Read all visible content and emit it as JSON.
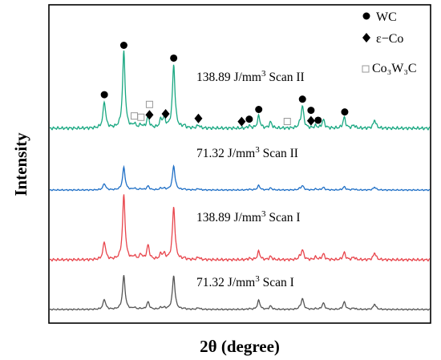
{
  "chart_data": {
    "type": "line",
    "xlabel": "2θ (degree)",
    "ylabel": "Intensity",
    "x_ticks_shown": false,
    "y_ticks_shown": false,
    "x_range": [
      20,
      100
    ],
    "grid": false,
    "legend_position": "top-right",
    "legend": [
      {
        "marker": "filled-circle",
        "label": "WC"
      },
      {
        "marker": "filled-diamond",
        "label": "ε−Co"
      },
      {
        "marker": "open-square",
        "label": "Co₃W₃C"
      }
    ],
    "peaks_2theta": [
      31.5,
      35.6,
      37.8,
      39.2,
      40.7,
      43.4,
      44.1,
      46.1,
      48.3,
      51.3,
      62.0,
      64.0,
      66.5,
      72.6,
      73.2,
      76.0,
      77.6,
      82.0,
      84.0,
      88.4
    ],
    "series": [
      {
        "name": "71.32 J/mm³ Scan I",
        "color": "#555555",
        "label_text": [
          "71.32 J/mm",
          "3",
          " Scan I"
        ],
        "intensities": [
          0.3,
          1.0,
          0.05,
          0.02,
          0.22,
          0.05,
          0.04,
          1.0,
          0.02,
          0.05,
          0.02,
          0.27,
          0.1,
          0.03,
          0.32,
          0.02,
          0.19,
          0.22,
          0.04,
          0.16
        ]
      },
      {
        "name": "138.89 J/mm³ Scan I",
        "color": "#e8454c",
        "label_text": [
          "138.89 J/mm",
          "3",
          " Scan I"
        ],
        "intensities": [
          0.28,
          1.0,
          0.05,
          0.08,
          0.22,
          0.08,
          0.08,
          0.82,
          0.02,
          0.04,
          0.02,
          0.13,
          0.05,
          0.03,
          0.15,
          0.04,
          0.09,
          0.11,
          0.04,
          0.11
        ]
      },
      {
        "name": "71.32 J/mm³ Scan II",
        "color": "#1f6fc6",
        "label_text": [
          "71.32 J/mm",
          "3",
          " Scan II"
        ],
        "intensities": [
          0.2,
          0.7,
          0.05,
          0.03,
          0.12,
          0.05,
          0.04,
          0.75,
          0.02,
          0.04,
          0.02,
          0.14,
          0.06,
          0.03,
          0.13,
          0.03,
          0.08,
          0.1,
          0.03,
          0.09
        ]
      },
      {
        "name": "138.89 J/mm³ Scan II",
        "color": "#1aa882",
        "label_text": [
          "138.89 J/mm",
          "3",
          " Scan II"
        ],
        "intensities": [
          0.35,
          1.0,
          0.05,
          0.04,
          0.15,
          0.1,
          0.12,
          0.83,
          0.03,
          0.04,
          0.03,
          0.16,
          0.08,
          0.03,
          0.29,
          0.03,
          0.11,
          0.14,
          0.04,
          0.11
        ]
      }
    ],
    "peak_markers": [
      {
        "x": 31.5,
        "symbol": "circle"
      },
      {
        "x": 35.6,
        "symbol": "circle"
      },
      {
        "x": 37.8,
        "symbol": "square"
      },
      {
        "x": 39.2,
        "symbol": "square"
      },
      {
        "x": 41.0,
        "symbol": "diamond"
      },
      {
        "x": 41.0,
        "symbol": "square"
      },
      {
        "x": 44.4,
        "symbol": "diamond"
      },
      {
        "x": 46.1,
        "symbol": "circle"
      },
      {
        "x": 51.3,
        "symbol": "diamond"
      },
      {
        "x": 60.4,
        "symbol": "diamond"
      },
      {
        "x": 62.0,
        "symbol": "circle"
      },
      {
        "x": 64.0,
        "symbol": "circle"
      },
      {
        "x": 70.0,
        "symbol": "square"
      },
      {
        "x": 73.2,
        "symbol": "circle"
      },
      {
        "x": 75.0,
        "symbol": "diamond"
      },
      {
        "x": 75.0,
        "symbol": "circle"
      },
      {
        "x": 76.5,
        "symbol": "circle"
      },
      {
        "x": 82.1,
        "symbol": "circle"
      }
    ]
  }
}
